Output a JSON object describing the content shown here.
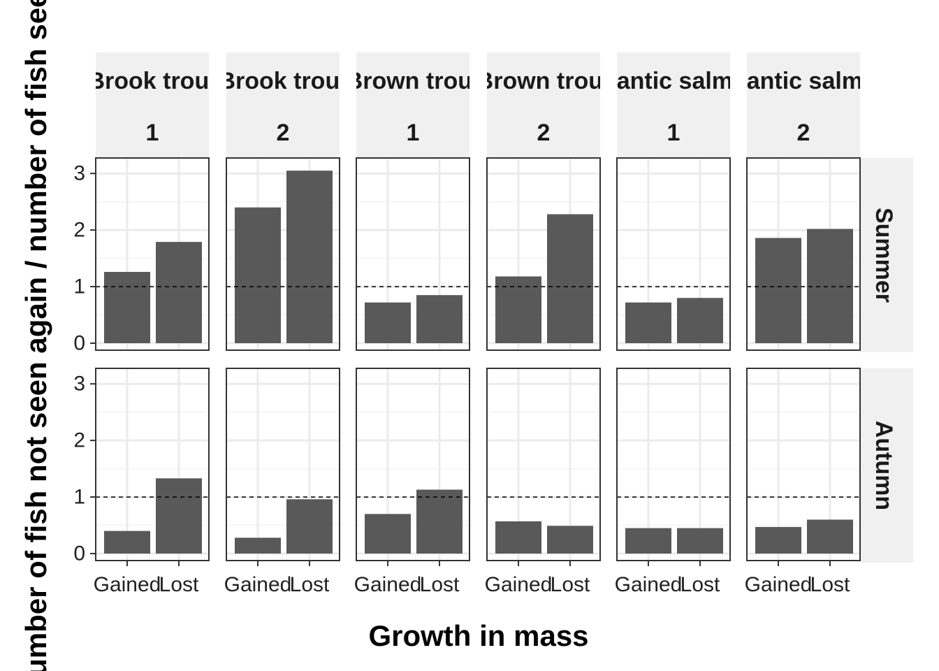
{
  "chart_data": {
    "type": "bar",
    "xlabel": "Growth in mass",
    "ylabel": "Number of fish not seen again / number of fish seen",
    "ylim": [
      0,
      3.2
    ],
    "yticks": [
      0,
      1,
      2,
      3
    ],
    "reference_line": 1,
    "categories": [
      "Gained",
      "Lost"
    ],
    "facet_columns": [
      {
        "species": "Brook trout",
        "level": "1"
      },
      {
        "species": "Brook trout",
        "level": "2"
      },
      {
        "species": "Brown trout",
        "level": "1"
      },
      {
        "species": "Brown trout",
        "level": "2"
      },
      {
        "species": "Atlantic salmon",
        "level": "1"
      },
      {
        "species": "Atlantic salmon",
        "level": "2"
      }
    ],
    "facet_rows": [
      "Summer",
      "Autumn"
    ],
    "panels": [
      {
        "row": "Summer",
        "col": 0,
        "values": [
          1.26,
          1.79
        ]
      },
      {
        "row": "Summer",
        "col": 1,
        "values": [
          2.4,
          3.05
        ]
      },
      {
        "row": "Summer",
        "col": 2,
        "values": [
          0.72,
          0.85
        ]
      },
      {
        "row": "Summer",
        "col": 3,
        "values": [
          1.18,
          2.28
        ]
      },
      {
        "row": "Summer",
        "col": 4,
        "values": [
          0.72,
          0.8
        ]
      },
      {
        "row": "Summer",
        "col": 5,
        "values": [
          1.86,
          2.02
        ]
      },
      {
        "row": "Autumn",
        "col": 0,
        "values": [
          0.4,
          1.33
        ]
      },
      {
        "row": "Autumn",
        "col": 1,
        "values": [
          0.28,
          0.96
        ]
      },
      {
        "row": "Autumn",
        "col": 2,
        "values": [
          0.7,
          1.13
        ]
      },
      {
        "row": "Autumn",
        "col": 3,
        "values": [
          0.57,
          0.49
        ]
      },
      {
        "row": "Autumn",
        "col": 4,
        "values": [
          0.45,
          0.45
        ]
      },
      {
        "row": "Autumn",
        "col": 5,
        "values": [
          0.47,
          0.6
        ]
      }
    ],
    "bar_color": "#595959",
    "strip_color": "#f0f0f0",
    "grid": true,
    "legend": "none"
  }
}
